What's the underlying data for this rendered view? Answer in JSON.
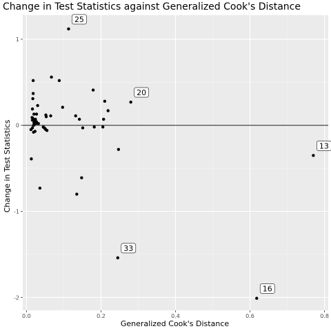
{
  "chart_data": {
    "type": "scatter",
    "title": "Change in Test Statistics against Generalized Cook's Distance",
    "xlabel": "Generalized Cook's Distance",
    "ylabel": "Change in Test Statistics",
    "xlim": [
      -0.01,
      0.81
    ],
    "ylim": [
      -2.15,
      1.28
    ],
    "x_ticks": [
      0.0,
      0.2,
      0.4,
      0.6,
      0.8
    ],
    "x_tick_labels": [
      "0.0",
      "0.2",
      "0.4",
      "0.6",
      "0.8"
    ],
    "y_ticks": [
      -2,
      -1,
      0,
      1
    ],
    "y_tick_labels": [
      "-2",
      "-1",
      "0",
      "1"
    ],
    "hline_y": 0,
    "grid": true,
    "points": [
      {
        "x": 0.113,
        "y": 1.12
      },
      {
        "x": 0.067,
        "y": 0.56
      },
      {
        "x": 0.088,
        "y": 0.52
      },
      {
        "x": 0.018,
        "y": 0.52
      },
      {
        "x": 0.018,
        "y": 0.37
      },
      {
        "x": 0.017,
        "y": 0.31
      },
      {
        "x": 0.03,
        "y": 0.23
      },
      {
        "x": 0.097,
        "y": 0.21
      },
      {
        "x": 0.016,
        "y": 0.19
      },
      {
        "x": 0.02,
        "y": 0.13
      },
      {
        "x": 0.027,
        "y": 0.13
      },
      {
        "x": 0.052,
        "y": 0.12
      },
      {
        "x": 0.065,
        "y": 0.11
      },
      {
        "x": 0.053,
        "y": 0.1
      },
      {
        "x": 0.015,
        "y": 0.09
      },
      {
        "x": 0.017,
        "y": 0.08
      },
      {
        "x": 0.024,
        "y": 0.07
      },
      {
        "x": 0.016,
        "y": 0.06
      },
      {
        "x": 0.022,
        "y": 0.05
      },
      {
        "x": 0.027,
        "y": 0.04
      },
      {
        "x": 0.02,
        "y": 0.03
      },
      {
        "x": 0.025,
        "y": 0.02
      },
      {
        "x": 0.032,
        "y": 0.02
      },
      {
        "x": 0.022,
        "y": 0.01
      },
      {
        "x": 0.019,
        "y": 0.0
      },
      {
        "x": 0.045,
        "y": -0.02
      },
      {
        "x": 0.048,
        "y": -0.03
      },
      {
        "x": 0.016,
        "y": -0.03
      },
      {
        "x": 0.05,
        "y": -0.04
      },
      {
        "x": 0.052,
        "y": -0.05
      },
      {
        "x": 0.012,
        "y": -0.05
      },
      {
        "x": 0.055,
        "y": -0.06
      },
      {
        "x": 0.023,
        "y": -0.07
      },
      {
        "x": 0.019,
        "y": -0.08
      },
      {
        "x": 0.132,
        "y": 0.11
      },
      {
        "x": 0.142,
        "y": 0.07
      },
      {
        "x": 0.151,
        "y": -0.03
      },
      {
        "x": 0.179,
        "y": 0.41
      },
      {
        "x": 0.182,
        "y": -0.02
      },
      {
        "x": 0.207,
        "y": 0.07
      },
      {
        "x": 0.21,
        "y": 0.28
      },
      {
        "x": 0.219,
        "y": 0.17
      },
      {
        "x": 0.205,
        "y": -0.02
      },
      {
        "x": 0.247,
        "y": -0.28
      },
      {
        "x": 0.28,
        "y": 0.27
      },
      {
        "x": 0.013,
        "y": -0.39
      },
      {
        "x": 0.036,
        "y": -0.73
      },
      {
        "x": 0.148,
        "y": -0.61
      },
      {
        "x": 0.135,
        "y": -0.8
      },
      {
        "x": 0.245,
        "y": -1.54
      },
      {
        "x": 0.618,
        "y": -2.01
      },
      {
        "x": 0.77,
        "y": -0.35
      }
    ],
    "annotations": [
      {
        "label": "25",
        "x": 0.113,
        "y": 1.12
      },
      {
        "label": "20",
        "x": 0.28,
        "y": 0.27
      },
      {
        "label": "13",
        "x": 0.77,
        "y": -0.35
      },
      {
        "label": "33",
        "x": 0.245,
        "y": -1.54
      },
      {
        "label": "16",
        "x": 0.618,
        "y": -2.01
      }
    ],
    "colors": {
      "panel": "#ebebeb",
      "grid_major": "#ffffff",
      "grid_minor": "#f5f5f5",
      "point": "#000000",
      "reference_line": "#333333"
    }
  }
}
